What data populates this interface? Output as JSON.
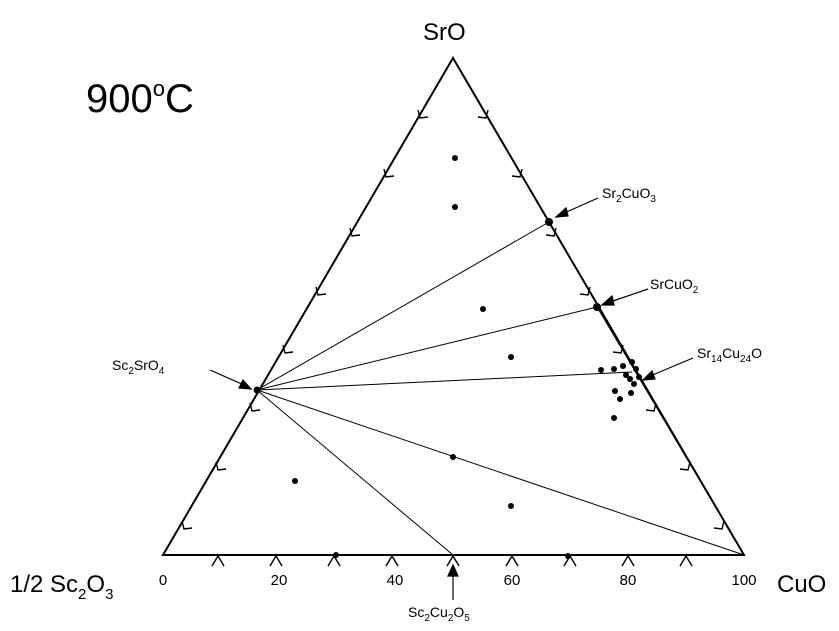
{
  "title": {
    "text": "900",
    "sup": "o",
    "unit": "C"
  },
  "vertices": {
    "top": "SrO",
    "right": "CuO",
    "left": {
      "pre": "1/2 Sc",
      "s1": "2",
      "mid": "O",
      "s2": "3"
    }
  },
  "bottom_axis": {
    "ticks": [
      "0",
      "20",
      "40",
      "60",
      "80",
      "100"
    ]
  },
  "phases": {
    "sr2cuo3": {
      "a": "Sr",
      "b": "2",
      "c": "CuO",
      "d": "3"
    },
    "srcuo2": {
      "a": "SrCuO",
      "b": "2"
    },
    "sr14cu24o": {
      "a": "Sr",
      "b": "14",
      "c": "Cu",
      "d": "24",
      "e": "O"
    },
    "sc2sro4": {
      "a": "Sc",
      "b": "2",
      "c": "SrO",
      "d": "4"
    },
    "sc2cu2o5": {
      "a": "Sc",
      "b": "2",
      "c": "Cu",
      "d": "2",
      "e": "O",
      "f": "5"
    }
  },
  "compound_compositions": {
    "Sr2CuO3": {
      "SrO": 66.7,
      "CuO": 33.3,
      "ScO1.5": 0
    },
    "SrCuO2": {
      "SrO": 50,
      "CuO": 50,
      "ScO1.5": 0
    },
    "Sr14Cu24O": {
      "SrO": 30,
      "CuO": 55,
      "ScO1.5": 15
    },
    "Sc2SrO4": {
      "SrO": 33.3,
      "CuO": 0,
      "ScO1.5": 66.7
    },
    "Sc2Cu2O5": {
      "SrO": 0,
      "CuO": 50,
      "ScO1.5": 50
    }
  }
}
